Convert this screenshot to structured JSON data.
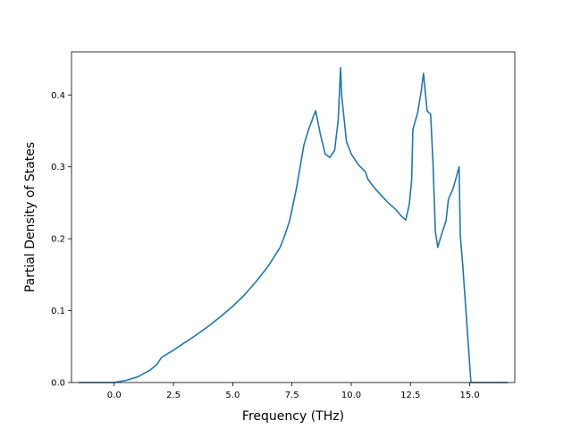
{
  "chart_data": {
    "type": "line",
    "title": "",
    "xlabel": "Frequency (THz)",
    "ylabel": "Partial Density of States",
    "xlim": [
      -1.8,
      16.9
    ],
    "ylim": [
      0.0,
      0.46
    ],
    "x_ticks": [
      0.0,
      2.5,
      5.0,
      7.5,
      10.0,
      12.5,
      15.0
    ],
    "x_tick_labels": [
      "0.0",
      "2.5",
      "5.0",
      "7.5",
      "10.0",
      "12.5",
      "15.0"
    ],
    "y_ticks": [
      0.0,
      0.1,
      0.2,
      0.3,
      0.4
    ],
    "y_tick_labels": [
      "0.0",
      "0.1",
      "0.2",
      "0.3",
      "0.4"
    ],
    "grid": false,
    "line_color": "#1f77b4",
    "series": [
      {
        "x": [
          -1.5,
          -0.5,
          0.0,
          0.5,
          1.0,
          1.5,
          1.8,
          2.0,
          2.5,
          3.0,
          3.5,
          4.0,
          4.5,
          5.0,
          5.5,
          6.0,
          6.5,
          7.0,
          7.2,
          7.4,
          7.5,
          7.7,
          8.0,
          8.2,
          8.35,
          8.4,
          8.5,
          8.7,
          8.9,
          9.1,
          9.3,
          9.45,
          9.55,
          9.6,
          9.8,
          10.0,
          10.3,
          10.6,
          10.7,
          11.0,
          11.5,
          11.9,
          12.1,
          12.3,
          12.45,
          12.55,
          12.6,
          12.8,
          12.95,
          13.05,
          13.2,
          13.35,
          13.45,
          13.55,
          13.65,
          13.8,
          14.0,
          14.1,
          14.3,
          14.45,
          14.55,
          14.6,
          14.7,
          14.85,
          15.05,
          15.3,
          16.6
        ],
        "y": [
          0.0,
          0.0,
          0.0,
          0.003,
          0.008,
          0.017,
          0.025,
          0.035,
          0.045,
          0.056,
          0.067,
          0.079,
          0.092,
          0.106,
          0.122,
          0.141,
          0.162,
          0.188,
          0.205,
          0.225,
          0.24,
          0.272,
          0.33,
          0.352,
          0.365,
          0.37,
          0.378,
          0.345,
          0.318,
          0.313,
          0.323,
          0.365,
          0.438,
          0.398,
          0.335,
          0.318,
          0.303,
          0.293,
          0.283,
          0.27,
          0.252,
          0.24,
          0.232,
          0.226,
          0.248,
          0.282,
          0.352,
          0.375,
          0.405,
          0.43,
          0.378,
          0.373,
          0.305,
          0.21,
          0.188,
          0.205,
          0.225,
          0.255,
          0.27,
          0.288,
          0.3,
          0.205,
          0.165,
          0.095,
          0.0,
          0.0,
          0.0
        ]
      }
    ]
  }
}
